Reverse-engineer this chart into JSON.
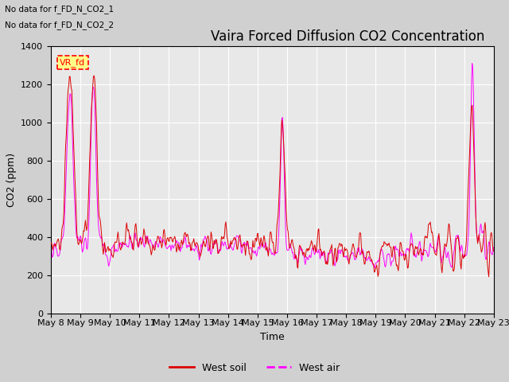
{
  "title": "Vaira Forced Diffusion CO2 Concentration",
  "xlabel": "Time",
  "ylabel": "CO2 (ppm)",
  "ylim": [
    0,
    1400
  ],
  "yticks": [
    0,
    200,
    400,
    600,
    800,
    1000,
    1200,
    1400
  ],
  "xtick_labels": [
    "May 8",
    "May 9",
    "May 10",
    "May 11",
    "May 12",
    "May 13",
    "May 14",
    "May 15",
    "May 16",
    "May 17",
    "May 18",
    "May 19",
    "May 20",
    "May 21",
    "May 22",
    "May 23"
  ],
  "soil_color": "#dd0000",
  "air_color": "#ff00ff",
  "legend_soil": "West soil",
  "legend_air": "West air",
  "annotation_text1": "No data for f_FD_N_CO2_1",
  "annotation_text2": "No data for f_FD_N_CO2_2",
  "vr_fd_label": "VR_fd",
  "fig_bg_color": "#d0d0d0",
  "plot_bg_color": "#e8e8e8",
  "grid_color": "#ffffff",
  "title_fontsize": 12,
  "label_fontsize": 9,
  "tick_fontsize": 8
}
